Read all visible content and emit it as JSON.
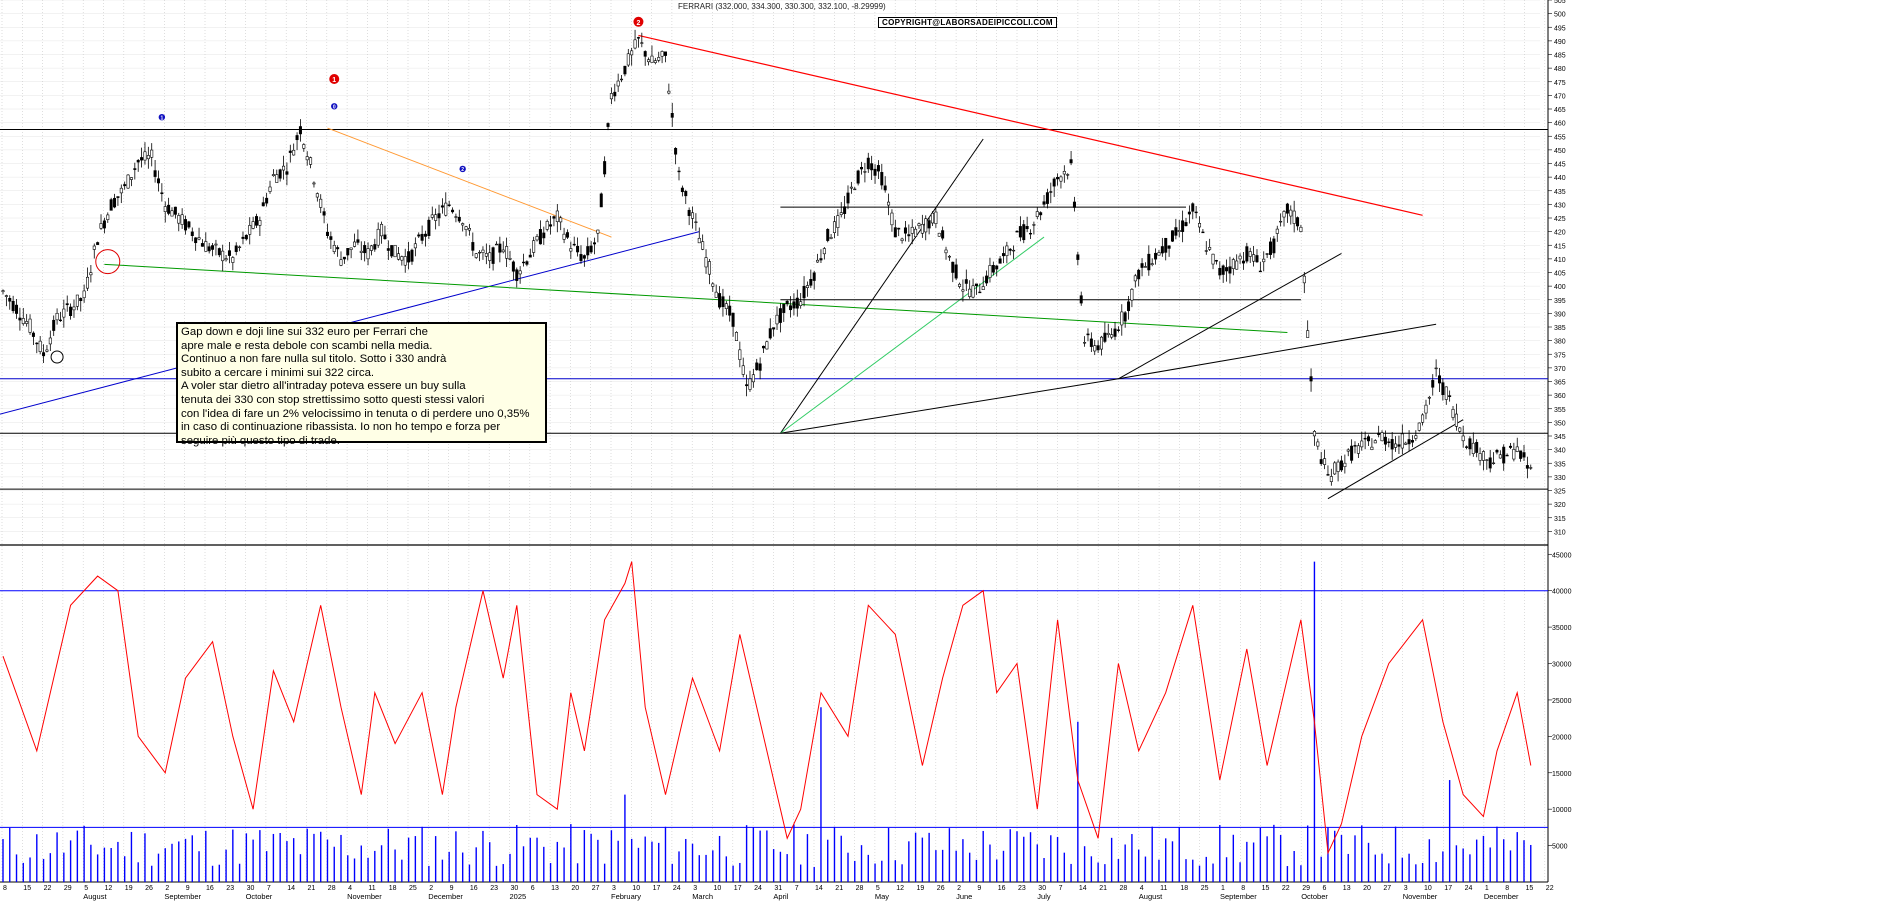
{
  "header": {
    "title": "FERRARI (332.000, 334.300, 330.300, 332.100, -8.29999)",
    "copyright": "COPYRIGHT@LABORSADEIPICCOLI.COM"
  },
  "annotation": {
    "lines": [
      "Gap down e doji line sui 332 euro per Ferrari che",
      "apre male e resta debole con scambi nella media.",
      "Continuo a non fare nulla sul titolo. Sotto i 330 andrà",
      "subito a cercare i minimi sui 322 circa.",
      "A voler star dietro all'intraday poteva essere un buy sulla",
      "tenuta dei 330 con stop strettissimo sotto questi stessi valori",
      "con l'idea di fare un 2% velocissimo in tenuta o di perdere uno 0,35%",
      "in caso di continuazione ribassista. Io non ho tempo e forza per",
      "seguire più questo tipo di trade."
    ]
  },
  "markers": {
    "red": [
      {
        "label": "1",
        "month_index": 3
      },
      {
        "label": "2",
        "month_index": 6
      }
    ],
    "blue": [
      {
        "label": "1"
      },
      {
        "label": "0"
      },
      {
        "label": "2"
      }
    ]
  },
  "colors": {
    "candle": "#000000",
    "volume_line": "#ff0000",
    "volume_bars": "#0000ff",
    "resistance_red": "#ff0000",
    "trend_orange": "#ff9933",
    "trend_blue": "#0000cc",
    "trend_green": "#009900",
    "trend_lightgreen": "#33cc66",
    "grid": "#c8c8c8",
    "annotation_bg": "#ffffe6"
  },
  "chart_data": {
    "type": "candlestick",
    "series_name": "FERRARI",
    "price_axis": {
      "ylim": [
        305,
        505
      ],
      "ticks": [
        310,
        315,
        320,
        325,
        330,
        335,
        340,
        345,
        350,
        355,
        360,
        365,
        370,
        375,
        380,
        385,
        390,
        395,
        400,
        405,
        410,
        415,
        420,
        425,
        430,
        435,
        440,
        445,
        450,
        455,
        460,
        465,
        470,
        475,
        480,
        485,
        490,
        495,
        500,
        505
      ]
    },
    "volume_axis": {
      "ylim": [
        0,
        46000
      ],
      "ticks": [
        "5000",
        "10000",
        "15000",
        "20000",
        "25000",
        "30000",
        "35000",
        "40000",
        "45000"
      ]
    },
    "x_axis": {
      "day_ticks": [
        "8",
        "15",
        "22",
        "29",
        "5",
        "12",
        "19",
        "26",
        "2",
        "9",
        "16",
        "23",
        "30",
        "7",
        "14",
        "21",
        "28",
        "4",
        "11",
        "18",
        "25",
        "2",
        "9",
        "16",
        "23",
        "30",
        "6",
        "13",
        "20",
        "27",
        "3",
        "10",
        "17",
        "24",
        "3",
        "10",
        "17",
        "24",
        "31",
        "7",
        "14",
        "21",
        "28",
        "5",
        "12",
        "19",
        "26",
        "2",
        "9",
        "16",
        "23",
        "30",
        "7",
        "14",
        "21",
        "28",
        "4",
        "11",
        "18",
        "25",
        "1",
        "8",
        "15",
        "22",
        "29",
        "6",
        "13",
        "20",
        "27",
        "3",
        "10",
        "17",
        "24",
        "1",
        "8",
        "15",
        "22"
      ],
      "month_labels": [
        {
          "label": "August",
          "index": 4
        },
        {
          "label": "September",
          "index": 8
        },
        {
          "label": "October",
          "index": 12
        },
        {
          "label": "November",
          "index": 17
        },
        {
          "label": "December",
          "index": 21
        },
        {
          "label": "2025",
          "index": 25
        },
        {
          "label": "February",
          "index": 30
        },
        {
          "label": "March",
          "index": 34
        },
        {
          "label": "April",
          "index": 38
        },
        {
          "label": "May",
          "index": 43
        },
        {
          "label": "June",
          "index": 47
        },
        {
          "label": "July",
          "index": 51
        },
        {
          "label": "August",
          "index": 56
        },
        {
          "label": "September",
          "index": 60
        },
        {
          "label": "October",
          "index": 64
        },
        {
          "label": "November",
          "index": 69
        },
        {
          "label": "December",
          "index": 73
        }
      ]
    },
    "price_path": [
      [
        0,
        398
      ],
      [
        4,
        392
      ],
      [
        8,
        385
      ],
      [
        12,
        375
      ],
      [
        16,
        388
      ],
      [
        20,
        392
      ],
      [
        24,
        396
      ],
      [
        28,
        418
      ],
      [
        32,
        430
      ],
      [
        36,
        436
      ],
      [
        40,
        446
      ],
      [
        44,
        447
      ],
      [
        48,
        430
      ],
      [
        52,
        425
      ],
      [
        56,
        420
      ],
      [
        60,
        415
      ],
      [
        64,
        412
      ],
      [
        68,
        410
      ],
      [
        72,
        418
      ],
      [
        76,
        425
      ],
      [
        80,
        440
      ],
      [
        84,
        444
      ],
      [
        88,
        458
      ],
      [
        92,
        440
      ],
      [
        96,
        420
      ],
      [
        100,
        410
      ],
      [
        104,
        415
      ],
      [
        108,
        412
      ],
      [
        112,
        420
      ],
      [
        116,
        412
      ],
      [
        120,
        410
      ],
      [
        124,
        418
      ],
      [
        128,
        425
      ],
      [
        132,
        430
      ],
      [
        136,
        425
      ],
      [
        140,
        412
      ],
      [
        144,
        410
      ],
      [
        148,
        415
      ],
      [
        152,
        405
      ],
      [
        156,
        412
      ],
      [
        160,
        420
      ],
      [
        164,
        425
      ],
      [
        168,
        415
      ],
      [
        172,
        410
      ],
      [
        176,
        418
      ],
      [
        180,
        470
      ],
      [
        184,
        480
      ],
      [
        188,
        490
      ],
      [
        192,
        482
      ],
      [
        196,
        484
      ],
      [
        200,
        440
      ],
      [
        204,
        425
      ],
      [
        208,
        410
      ],
      [
        212,
        395
      ],
      [
        216,
        388
      ],
      [
        220,
        362
      ],
      [
        224,
        372
      ],
      [
        228,
        386
      ],
      [
        232,
        392
      ],
      [
        236,
        395
      ],
      [
        240,
        405
      ],
      [
        244,
        418
      ],
      [
        248,
        425
      ],
      [
        252,
        438
      ],
      [
        256,
        446
      ],
      [
        260,
        440
      ],
      [
        264,
        420
      ],
      [
        268,
        418
      ],
      [
        272,
        422
      ],
      [
        276,
        425
      ],
      [
        280,
        410
      ],
      [
        284,
        400
      ],
      [
        288,
        398
      ],
      [
        292,
        405
      ],
      [
        296,
        410
      ],
      [
        300,
        418
      ],
      [
        304,
        422
      ],
      [
        308,
        430
      ],
      [
        312,
        440
      ],
      [
        316,
        444
      ],
      [
        320,
        380
      ],
      [
        324,
        378
      ],
      [
        328,
        382
      ],
      [
        332,
        390
      ],
      [
        336,
        405
      ],
      [
        340,
        410
      ],
      [
        344,
        415
      ],
      [
        348,
        420
      ],
      [
        352,
        428
      ],
      [
        356,
        415
      ],
      [
        360,
        405
      ],
      [
        364,
        408
      ],
      [
        368,
        412
      ],
      [
        372,
        408
      ],
      [
        376,
        415
      ],
      [
        380,
        428
      ],
      [
        384,
        422
      ],
      [
        388,
        345
      ],
      [
        392,
        330
      ],
      [
        396,
        335
      ],
      [
        400,
        340
      ],
      [
        404,
        342
      ],
      [
        408,
        345
      ],
      [
        412,
        342
      ],
      [
        416,
        344
      ],
      [
        420,
        350
      ],
      [
        424,
        368
      ],
      [
        428,
        358
      ],
      [
        432,
        345
      ],
      [
        436,
        340
      ],
      [
        440,
        336
      ],
      [
        444,
        338
      ],
      [
        448,
        340
      ],
      [
        452,
        332
      ]
    ],
    "resistance_levels": [
      457.5,
      366,
      346,
      325.5
    ],
    "volume_line": [
      [
        0,
        31000
      ],
      [
        10,
        18000
      ],
      [
        20,
        38000
      ],
      [
        28,
        42000
      ],
      [
        34,
        40000
      ],
      [
        40,
        20000
      ],
      [
        48,
        15000
      ],
      [
        54,
        28000
      ],
      [
        62,
        33000
      ],
      [
        68,
        20000
      ],
      [
        74,
        10000
      ],
      [
        80,
        29000
      ],
      [
        86,
        22000
      ],
      [
        94,
        38000
      ],
      [
        100,
        24000
      ],
      [
        106,
        12000
      ],
      [
        110,
        26000
      ],
      [
        116,
        19000
      ],
      [
        124,
        26000
      ],
      [
        130,
        12000
      ],
      [
        134,
        24000
      ],
      [
        142,
        40000
      ],
      [
        148,
        28000
      ],
      [
        152,
        38000
      ],
      [
        158,
        12000
      ],
      [
        164,
        10000
      ],
      [
        168,
        26000
      ],
      [
        172,
        18000
      ],
      [
        178,
        36000
      ],
      [
        184,
        41000
      ],
      [
        186,
        44000
      ],
      [
        190,
        24000
      ],
      [
        196,
        12000
      ],
      [
        204,
        28000
      ],
      [
        212,
        18000
      ],
      [
        218,
        34000
      ],
      [
        224,
        22000
      ],
      [
        232,
        6000
      ],
      [
        236,
        10000
      ],
      [
        242,
        26000
      ],
      [
        250,
        20000
      ],
      [
        256,
        38000
      ],
      [
        264,
        34000
      ],
      [
        272,
        16000
      ],
      [
        278,
        28000
      ],
      [
        284,
        38000
      ],
      [
        290,
        40000
      ],
      [
        294,
        26000
      ],
      [
        300,
        30000
      ],
      [
        306,
        10000
      ],
      [
        312,
        36000
      ],
      [
        318,
        14000
      ],
      [
        324,
        6000
      ],
      [
        330,
        30000
      ],
      [
        336,
        18000
      ],
      [
        344,
        26000
      ],
      [
        352,
        38000
      ],
      [
        360,
        14000
      ],
      [
        368,
        32000
      ],
      [
        374,
        16000
      ],
      [
        380,
        28000
      ],
      [
        384,
        36000
      ],
      [
        388,
        22000
      ],
      [
        392,
        4000
      ],
      [
        396,
        8000
      ],
      [
        402,
        20000
      ],
      [
        410,
        30000
      ],
      [
        420,
        36000
      ],
      [
        426,
        22000
      ],
      [
        432,
        12000
      ],
      [
        438,
        9000
      ],
      [
        442,
        18000
      ],
      [
        448,
        26000
      ],
      [
        452,
        16000
      ]
    ],
    "volume_bars_peaks": [
      [
        184,
        12000
      ],
      [
        242,
        24000
      ],
      [
        318,
        22000
      ],
      [
        388,
        44000
      ],
      [
        428,
        14000
      ]
    ],
    "volume_reference_levels": [
      40000,
      7500
    ]
  }
}
